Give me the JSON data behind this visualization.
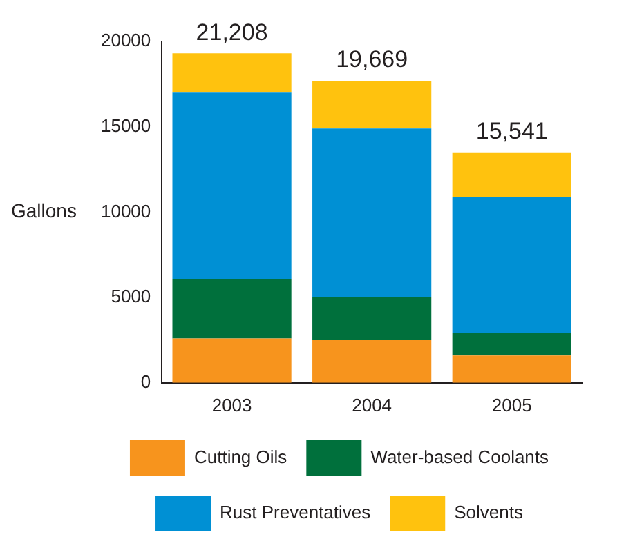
{
  "chart_data": {
    "type": "bar",
    "ylabel": "Gallons",
    "categories": [
      "2003",
      "2004",
      "2005"
    ],
    "stacked": true,
    "series": [
      {
        "name": "Cutting Oils",
        "color": "#f7941d",
        "values": [
          2600,
          2500,
          1600
        ]
      },
      {
        "name": "Water-based Coolants",
        "color": "#00703c",
        "values": [
          3500,
          2500,
          1300
        ]
      },
      {
        "name": "Rust Preventatives",
        "color": "#0090d4",
        "values": [
          10900,
          9900,
          8000
        ]
      },
      {
        "name": "Solvents",
        "color": "#ffc20e",
        "values": [
          2300,
          2800,
          2600
        ]
      }
    ],
    "annotations": [
      {
        "text": "21,208",
        "x": "2003",
        "y": 19300
      },
      {
        "text": "19,669",
        "x": "2004",
        "y": 17700
      },
      {
        "text": "15,541",
        "x": "2005",
        "y": 13500
      }
    ],
    "ylim": [
      0,
      20000
    ],
    "yticks": [
      0,
      5000,
      10000,
      15000,
      20000
    ],
    "grid": false,
    "legend": "bottom"
  }
}
